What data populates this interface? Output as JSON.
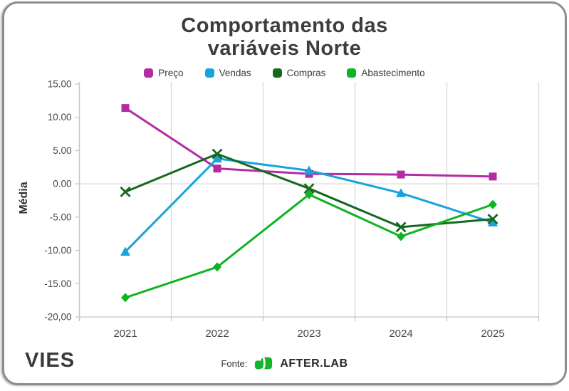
{
  "title": {
    "line1": "Comportamento das",
    "line2": "variáveis Norte"
  },
  "footer": {
    "brand": "VIES",
    "source_label": "Fonte:",
    "source_name": "AFTER.LAB",
    "source_logo_color": "#13b32a"
  },
  "colors": {
    "title_text": "#3d3d3d",
    "axis_text": "#464646",
    "gridline": "#d9d9d9",
    "axis_line": "#c6c6c6",
    "card_border": "#8d8d8d"
  },
  "chart_data": {
    "type": "line",
    "title": "Comportamento das variáveis Norte",
    "ylabel": "Média",
    "xlabel": "",
    "x": [
      2021,
      2022,
      2023,
      2024,
      2025
    ],
    "x_labels": [
      "2021",
      "2022",
      "2023",
      "2024",
      "2025"
    ],
    "series": [
      {
        "name": "Preço",
        "color": "#b42ba3",
        "marker": "square",
        "values": [
          11.4,
          2.3,
          1.5,
          1.4,
          1.1
        ]
      },
      {
        "name": "Vendas",
        "color": "#17a3dc",
        "marker": "triangle",
        "values": [
          -10.2,
          3.8,
          2.0,
          -1.4,
          -5.8
        ]
      },
      {
        "name": "Compras",
        "color": "#17681f",
        "marker": "x",
        "values": [
          -1.2,
          4.5,
          -0.7,
          -6.5,
          -5.3
        ]
      },
      {
        "name": "Abastecimento",
        "color": "#10b321",
        "marker": "diamond",
        "values": [
          -17.1,
          -12.5,
          -1.6,
          -7.9,
          -3.1
        ]
      }
    ],
    "ylim": [
      -20,
      15
    ],
    "y_tick_values": [
      15,
      10,
      5,
      0,
      -5,
      -10,
      -15,
      -20
    ],
    "y_tick_labels": [
      "15.00",
      "10.00",
      "5.00",
      "0.00",
      "-5.00",
      "-10.00",
      "-15.00",
      "-20,00"
    ],
    "grid": "vertical category boundaries + zero line",
    "legend_position": "top"
  }
}
